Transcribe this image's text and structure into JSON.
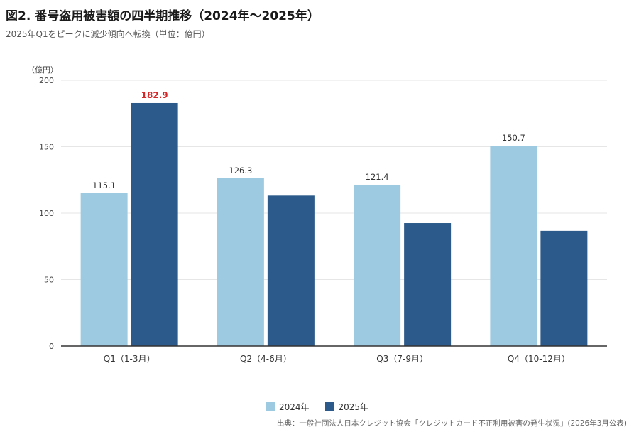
{
  "title": "図2. 番号盗用被害額の四半期推移（2024年〜2025年）",
  "subtitle": "2025年Q1をピークに減少傾向へ転換（単位：億円）",
  "source": "出典：一般社団法人日本クレジット協会「クレジットカード不正利用被害の発生状況」(2026年3月公表)",
  "colors": {
    "series_2024": "#9ecae1",
    "series_2025": "#2c5a8a",
    "highlight_label": "#d62728",
    "axis": "#333333",
    "grid": "#e6e6e6"
  },
  "chart_data": {
    "type": "bar",
    "title": "図2. 番号盗用被害額の四半期推移（2024年〜2025年）",
    "ylabel": "（億円）",
    "xlabel": "",
    "ylim": [
      0,
      200
    ],
    "yticks": [
      0,
      50,
      100,
      150,
      200
    ],
    "grid": true,
    "legend_position": "bottom-center",
    "categories": [
      "Q1（1-3月）",
      "Q2（4-6月）",
      "Q3（7-9月）",
      "Q4（10-12月）"
    ],
    "series": [
      {
        "name": "2024年",
        "values": [
          115.1,
          126.3,
          121.4,
          150.7
        ],
        "labels": [
          "115.1",
          "126.3",
          "121.4",
          "150.7"
        ]
      },
      {
        "name": "2025年",
        "values": [
          182.9,
          113.2,
          92.5,
          86.7
        ],
        "labels": [
          "182.9",
          "",
          "",
          ""
        ]
      }
    ],
    "highlight": {
      "series": 1,
      "index": 0
    }
  }
}
